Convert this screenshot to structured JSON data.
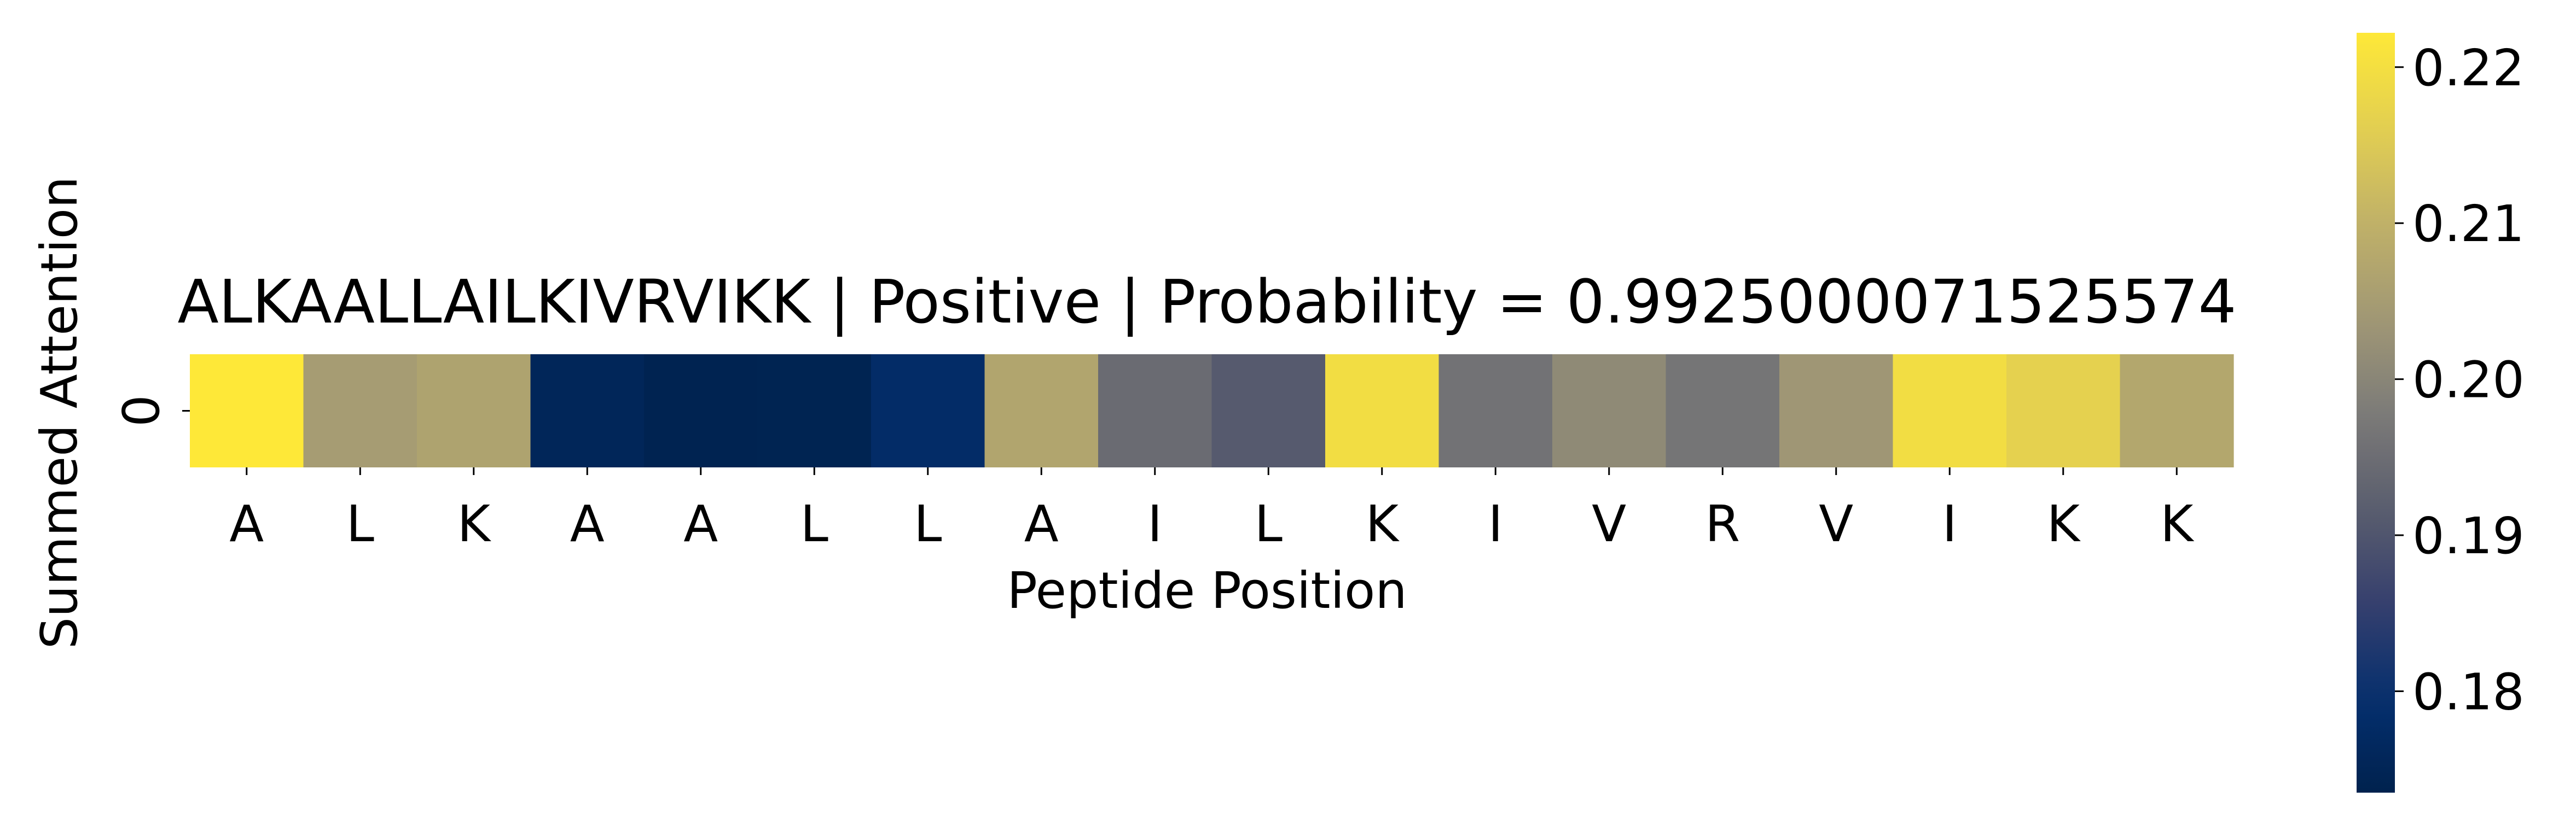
{
  "chart_data": {
    "type": "heatmap",
    "title": "ALKAALLAILKIVRVIKK | Positive | Probability = 0.9925000071525574",
    "xlabel": "Peptide Position",
    "ylabel": "Summed Attention",
    "x_tick_labels": [
      "A",
      "L",
      "K",
      "A",
      "A",
      "L",
      "L",
      "A",
      "I",
      "L",
      "K",
      "I",
      "V",
      "R",
      "V",
      "I",
      "K",
      "K"
    ],
    "y_tick_labels": [
      "0"
    ],
    "values": [
      [
        0.2222,
        0.2048,
        0.2065,
        0.1755,
        0.174,
        0.1742,
        0.178,
        0.207,
        0.1945,
        0.191,
        0.2195,
        0.196,
        0.201,
        0.1965,
        0.2035,
        0.2195,
        0.2165,
        0.2075
      ]
    ],
    "colormap": "cividis",
    "colorbar": {
      "vmin": 0.1735,
      "vmax": 0.2222,
      "ticks": [
        0.18,
        0.19,
        0.2,
        0.21,
        0.22
      ],
      "tick_labels": [
        "0.18",
        "0.19",
        "0.20",
        "0.21",
        "0.22"
      ]
    },
    "grid": false,
    "legend": "colorbar-right"
  }
}
